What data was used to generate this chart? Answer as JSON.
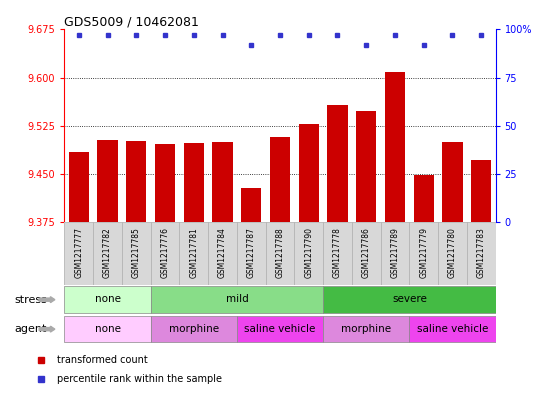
{
  "title": "GDS5009 / 10462081",
  "samples": [
    "GSM1217777",
    "GSM1217782",
    "GSM1217785",
    "GSM1217776",
    "GSM1217781",
    "GSM1217784",
    "GSM1217787",
    "GSM1217788",
    "GSM1217790",
    "GSM1217778",
    "GSM1217786",
    "GSM1217789",
    "GSM1217779",
    "GSM1217780",
    "GSM1217783"
  ],
  "bar_values": [
    9.484,
    9.503,
    9.502,
    9.497,
    9.498,
    9.5,
    9.428,
    9.508,
    9.527,
    9.558,
    9.548,
    9.608,
    9.448,
    9.5,
    9.472
  ],
  "percentile_values": [
    97,
    97,
    97,
    97,
    97,
    97,
    92,
    97,
    97,
    97,
    92,
    97,
    92,
    97,
    97
  ],
  "ylim_left": [
    9.375,
    9.675
  ],
  "ylim_right": [
    0,
    100
  ],
  "yticks_left": [
    9.375,
    9.45,
    9.525,
    9.6,
    9.675
  ],
  "yticks_right": [
    0,
    25,
    50,
    75,
    100
  ],
  "bar_color": "#cc0000",
  "dot_color": "#3333cc",
  "stress_groups": [
    {
      "label": "none",
      "start": 0,
      "end": 3,
      "color": "#ccffcc"
    },
    {
      "label": "mild",
      "start": 3,
      "end": 9,
      "color": "#88dd88"
    },
    {
      "label": "severe",
      "start": 9,
      "end": 15,
      "color": "#44bb44"
    }
  ],
  "agent_groups": [
    {
      "label": "none",
      "start": 0,
      "end": 3,
      "color": "#ffccff"
    },
    {
      "label": "morphine",
      "start": 3,
      "end": 6,
      "color": "#dd88dd"
    },
    {
      "label": "saline vehicle",
      "start": 6,
      "end": 9,
      "color": "#ee55ee"
    },
    {
      "label": "morphine",
      "start": 9,
      "end": 12,
      "color": "#dd88dd"
    },
    {
      "label": "saline vehicle",
      "start": 12,
      "end": 15,
      "color": "#ee55ee"
    }
  ],
  "legend_items": [
    {
      "label": "transformed count",
      "color": "#cc0000",
      "marker": "s"
    },
    {
      "label": "percentile rank within the sample",
      "color": "#3333cc",
      "marker": "s"
    }
  ],
  "stress_label_color": "#bbbbbb",
  "agent_label_color": "#bbbbbb"
}
